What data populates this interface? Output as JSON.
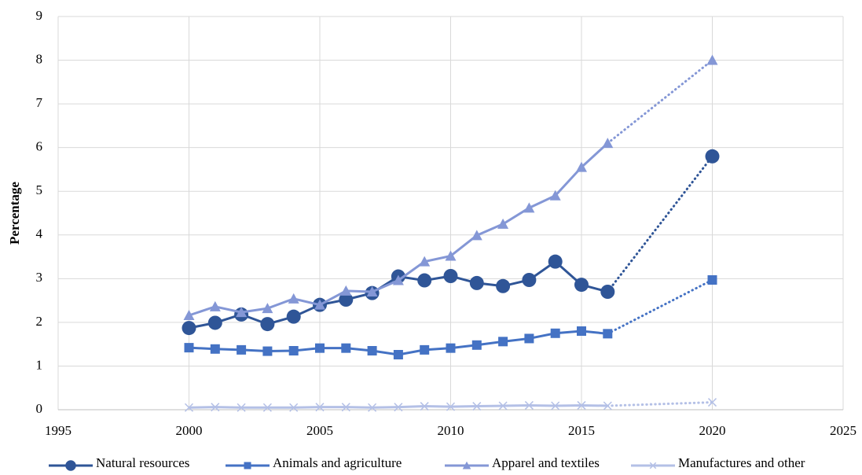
{
  "chart_data": {
    "type": "line",
    "y_label": "Percentage",
    "x": [
      2000,
      2001,
      2002,
      2003,
      2004,
      2005,
      2006,
      2007,
      2008,
      2009,
      2010,
      2011,
      2012,
      2013,
      2014,
      2015,
      2016,
      2020
    ],
    "series": [
      {
        "name": "Natural resources",
        "color": "#2f5597",
        "marker": "circle",
        "values": [
          1.87,
          1.99,
          2.18,
          1.96,
          2.13,
          2.4,
          2.52,
          2.67,
          3.05,
          2.96,
          3.06,
          2.9,
          2.83,
          2.97,
          3.39,
          2.86,
          2.7,
          5.8
        ]
      },
      {
        "name": "Animals and agriculture",
        "color": "#4472c4",
        "marker": "square",
        "values": [
          1.42,
          1.39,
          1.37,
          1.34,
          1.35,
          1.41,
          1.41,
          1.35,
          1.26,
          1.37,
          1.41,
          1.48,
          1.56,
          1.63,
          1.75,
          1.8,
          1.74,
          2.97
        ]
      },
      {
        "name": "Apparel and textiles",
        "color": "#8497d6",
        "marker": "triangle",
        "values": [
          2.16,
          2.36,
          2.23,
          2.32,
          2.54,
          2.4,
          2.72,
          2.7,
          2.96,
          3.39,
          3.52,
          3.99,
          4.25,
          4.62,
          4.9,
          5.55,
          6.1,
          8.0
        ]
      },
      {
        "name": "Manufactures and other",
        "color": "#b4c0e6",
        "marker": "x",
        "values": [
          0.05,
          0.06,
          0.05,
          0.05,
          0.05,
          0.06,
          0.06,
          0.05,
          0.06,
          0.08,
          0.07,
          0.08,
          0.09,
          0.1,
          0.09,
          0.1,
          0.09,
          0.17
        ]
      }
    ],
    "xlim": [
      1995,
      2025
    ],
    "xticks": [
      1995,
      2000,
      2005,
      2010,
      2015,
      2020,
      2025
    ],
    "ylim": [
      0,
      9
    ],
    "yticks": [
      0,
      1,
      2,
      3,
      4,
      5,
      6,
      7,
      8,
      9
    ],
    "grid": true,
    "legend": "bottom"
  }
}
